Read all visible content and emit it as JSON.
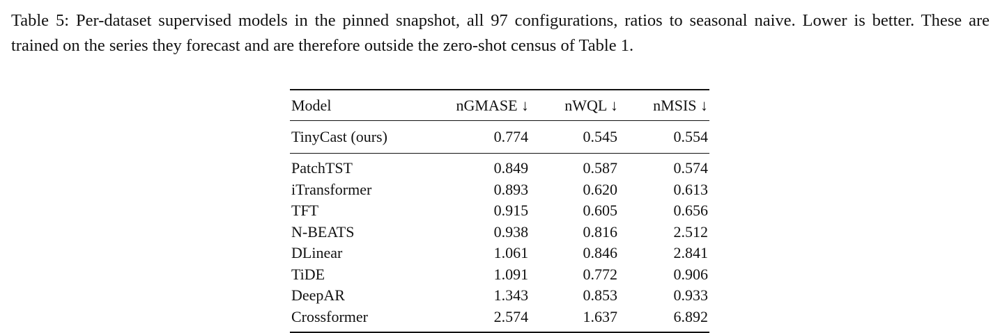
{
  "caption": {
    "label": "Table 5:",
    "text": "Per-dataset supervised models in the pinned snapshot, all 97 configurations, ratios to seasonal naive. Lower is better. These are trained on the series they forecast and are therefore outside the zero-shot census of Table 1."
  },
  "table": {
    "headers": {
      "model": "Model",
      "ngmase": "nGMASE ↓",
      "nwql": "nWQL ↓",
      "nmsis": "nMSIS ↓"
    },
    "ours": {
      "model": "TinyCast (ours)",
      "ngmase": "0.774",
      "nwql": "0.545",
      "nmsis": "0.554"
    },
    "rows": [
      {
        "model": "PatchTST",
        "ngmase": "0.849",
        "nwql": "0.587",
        "nmsis": "0.574"
      },
      {
        "model": "iTransformer",
        "ngmase": "0.893",
        "nwql": "0.620",
        "nmsis": "0.613"
      },
      {
        "model": "TFT",
        "ngmase": "0.915",
        "nwql": "0.605",
        "nmsis": "0.656"
      },
      {
        "model": "N-BEATS",
        "ngmase": "0.938",
        "nwql": "0.816",
        "nmsis": "2.512"
      },
      {
        "model": "DLinear",
        "ngmase": "1.061",
        "nwql": "0.846",
        "nmsis": "2.841"
      },
      {
        "model": "TiDE",
        "ngmase": "1.091",
        "nwql": "0.772",
        "nmsis": "0.906"
      },
      {
        "model": "DeepAR",
        "ngmase": "1.343",
        "nwql": "0.853",
        "nmsis": "0.933"
      },
      {
        "model": "Crossformer",
        "ngmase": "2.574",
        "nwql": "1.637",
        "nmsis": "6.892"
      }
    ]
  }
}
